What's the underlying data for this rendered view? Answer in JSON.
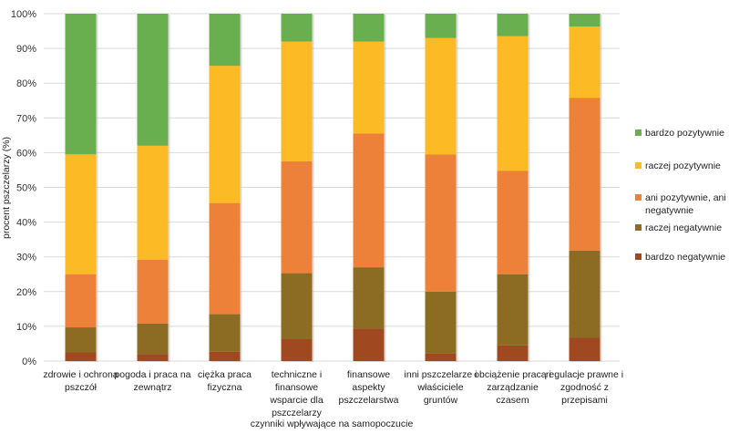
{
  "chart_data": {
    "type": "bar",
    "stacked": true,
    "normalized": true,
    "title": "",
    "xlabel": "czynniki wpływające na samopoczucie",
    "ylabel": "procent pszczelarzy (%)",
    "ylim": [
      0,
      100
    ],
    "yticks": [
      "0%",
      "10%",
      "20%",
      "30%",
      "40%",
      "50%",
      "60%",
      "70%",
      "80%",
      "90%",
      "100%"
    ],
    "grid": true,
    "legend_position": "right",
    "categories": [
      [
        "zdrowie i ochrona",
        "pszczół"
      ],
      [
        "pogoda i praca na",
        "zewnątrz"
      ],
      [
        "ciężka praca",
        "fizyczna"
      ],
      [
        "techniczne i",
        "finansowe",
        "wsparcie dla",
        "pszczelarzy"
      ],
      [
        "finansowe",
        "aspekty",
        "pszczelarstwa"
      ],
      [
        "inni pszczelarze i",
        "właściciele",
        "gruntów"
      ],
      [
        "obciążenie pracą i",
        "zarządzanie",
        "czasem"
      ],
      [
        "regulacje prawne i",
        "zgodność z",
        "przepisami"
      ]
    ],
    "series": [
      {
        "name": "bardzo negatywnie",
        "color": "#A0481F",
        "values": [
          2.5,
          2.0,
          2.7,
          6.3,
          9.3,
          2.2,
          4.5,
          6.8
        ]
      },
      {
        "name": "raczej negatywnie",
        "color": "#8B6C22",
        "values": [
          7.2,
          8.8,
          10.8,
          19.0,
          17.7,
          17.8,
          20.5,
          25.0
        ]
      },
      {
        "name": "ani pozytywnie, ani negatywnie",
        "color": "#EE813A",
        "values": [
          15.3,
          18.4,
          32.0,
          32.2,
          38.5,
          39.5,
          29.8,
          44.0
        ]
      },
      {
        "name": "raczej pozytywnie",
        "color": "#FCBA25",
        "values": [
          34.5,
          32.8,
          39.5,
          34.5,
          26.5,
          33.5,
          38.7,
          20.5
        ]
      },
      {
        "name": "bardzo pozytywnie",
        "color": "#6AAF4F",
        "values": [
          40.5,
          38.0,
          15.0,
          8.0,
          8.0,
          7.0,
          6.5,
          3.7
        ]
      }
    ],
    "legend_order": [
      "bardzo pozytywnie",
      "raczej pozytywnie",
      "ani pozytywnie, ani negatywnie",
      "raczej negatywnie",
      "bardzo negatywnie"
    ],
    "legend_wrapped": {
      "ani pozytywnie, ani negatywnie": [
        "ani pozytywnie, ani",
        "negatywnie"
      ]
    }
  },
  "colors": {
    "grid": "#d9d9d9",
    "text": "#222222"
  }
}
